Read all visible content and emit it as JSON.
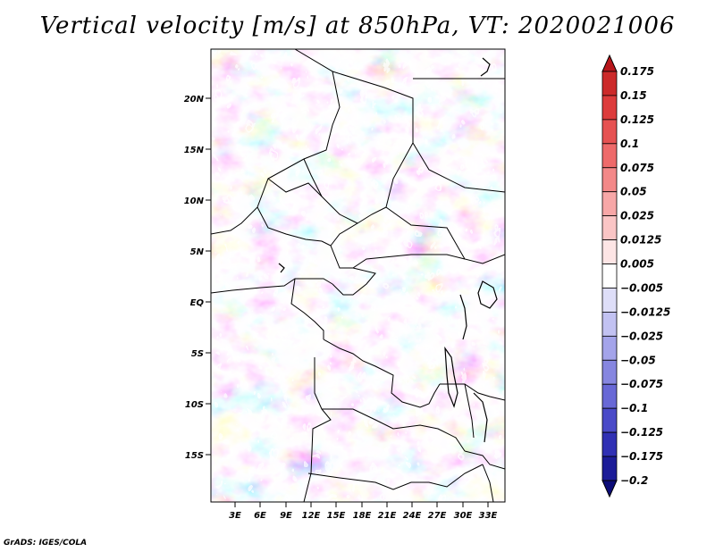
{
  "title": "Vertical velocity [m/s] at 850hPa, VT: 2020021006",
  "credit": "GrADS: IGES/COLA",
  "map": {
    "lat_ticks": [
      "20N",
      "15N",
      "10N",
      "5N",
      "EQ",
      "5S",
      "10S",
      "15S"
    ],
    "lon_ticks": [
      "3E",
      "6E",
      "9E",
      "12E",
      "15E",
      "18E",
      "21E",
      "24E",
      "27E",
      "30E",
      "33E"
    ]
  },
  "legend": {
    "labels": [
      "0.175",
      "0.15",
      "0.125",
      "0.1",
      "0.075",
      "0.05",
      "0.025",
      "0.0125",
      "0.005",
      "-0.005",
      "-0.0125",
      "-0.025",
      "-0.05",
      "-0.075",
      "-0.1",
      "-0.125",
      "-0.175",
      "-0.2"
    ],
    "colors": [
      "#b8161b",
      "#cc2a2a",
      "#dd3c3c",
      "#e65252",
      "#ee6a6a",
      "#f38888",
      "#f7a7a7",
      "#fac5c5",
      "#fde5e5",
      "#ffffff",
      "#dedef8",
      "#c2c2f2",
      "#a4a4ea",
      "#8686e0",
      "#6868d6",
      "#4a4ac8",
      "#3030b4",
      "#1c1c98",
      "#0c0c78"
    ]
  }
}
